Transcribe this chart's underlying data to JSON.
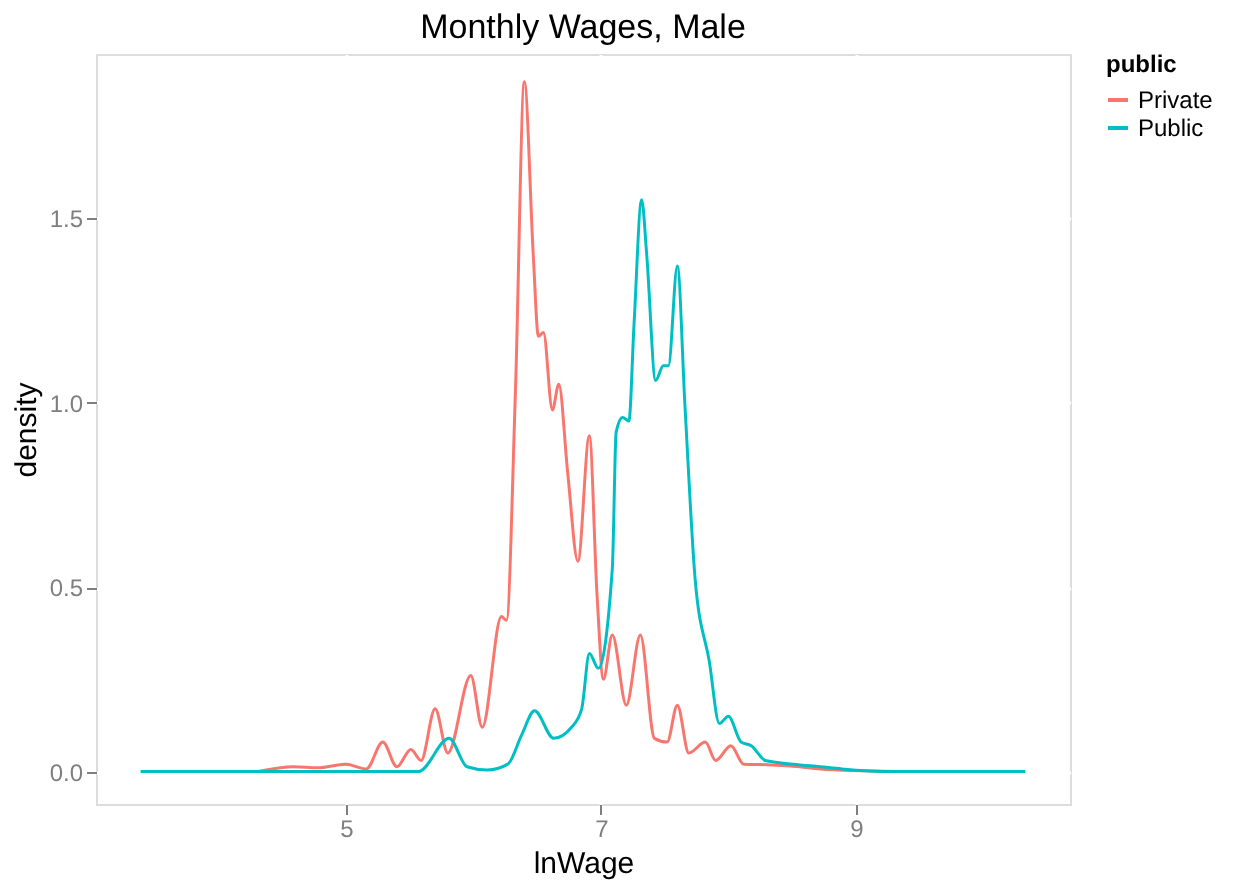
{
  "chart_data": {
    "type": "line",
    "title": "Monthly Wages, Male",
    "xlabel": "lnWage",
    "ylabel": "density",
    "legend_title": "public",
    "legend": "right",
    "grid": true,
    "line_style": "solid",
    "marker": "none",
    "xlim": [
      3.04,
      10.68
    ],
    "xticks": [
      5,
      7,
      9
    ],
    "ylim": [
      -0.088,
      1.945
    ],
    "yticks": [
      {
        "value": 0,
        "label": "0.0"
      },
      {
        "value": 0.5,
        "label": "0.5"
      },
      {
        "value": 1,
        "label": "1.0"
      },
      {
        "value": 1.5,
        "label": "1.5"
      }
    ],
    "series": [
      {
        "name": "Private",
        "color": "#f8766d",
        "x": [
          4.31,
          4.59,
          4.78,
          5.0,
          5.16,
          5.29,
          5.4,
          5.51,
          5.59,
          5.7,
          5.8,
          5.98,
          6.07,
          6.22,
          6.26,
          6.33,
          6.4,
          6.47,
          6.51,
          6.55,
          6.62,
          6.67,
          6.74,
          6.82,
          6.91,
          6.97,
          7.02,
          7.09,
          7.2,
          7.31,
          7.42,
          7.52,
          7.6,
          7.69,
          7.82,
          7.9,
          8.02,
          8.12,
          8.34,
          8.56,
          8.72,
          9.32
        ],
        "values": [
          0,
          0.013,
          0.01,
          0.02,
          0.007,
          0.08,
          0.013,
          0.06,
          0.03,
          0.17,
          0.05,
          0.26,
          0.12,
          0.42,
          0.41,
          1.03,
          1.87,
          1.4,
          1.18,
          1.19,
          0.98,
          1.05,
          0.81,
          0.57,
          0.91,
          0.48,
          0.25,
          0.37,
          0.18,
          0.37,
          0.09,
          0.08,
          0.18,
          0.05,
          0.08,
          0.03,
          0.07,
          0.02,
          0.018,
          0.013,
          0.007,
          0
        ]
      },
      {
        "name": "Public",
        "color": "#00bfc4",
        "x": [
          3.39,
          5.57,
          5.81,
          5.95,
          6.11,
          6.27,
          6.38,
          6.48,
          6.63,
          6.77,
          6.85,
          6.91,
          6.98,
          7.09,
          7.12,
          7.17,
          7.22,
          7.26,
          7.32,
          7.36,
          7.43,
          7.49,
          7.53,
          7.6,
          7.66,
          7.74,
          7.85,
          7.93,
          8.0,
          8.1,
          8.18,
          8.29,
          8.51,
          8.72,
          8.89,
          9.29,
          10.33
        ],
        "values": [
          0,
          0,
          0.09,
          0.013,
          0.004,
          0.02,
          0.1,
          0.165,
          0.09,
          0.12,
          0.17,
          0.32,
          0.28,
          0.55,
          0.92,
          0.96,
          0.95,
          1.21,
          1.55,
          1.4,
          1.06,
          1.1,
          1.1,
          1.37,
          0.99,
          0.52,
          0.3,
          0.13,
          0.15,
          0.08,
          0.07,
          0.03,
          0.02,
          0.013,
          0.007,
          0,
          0
        ]
      }
    ]
  }
}
